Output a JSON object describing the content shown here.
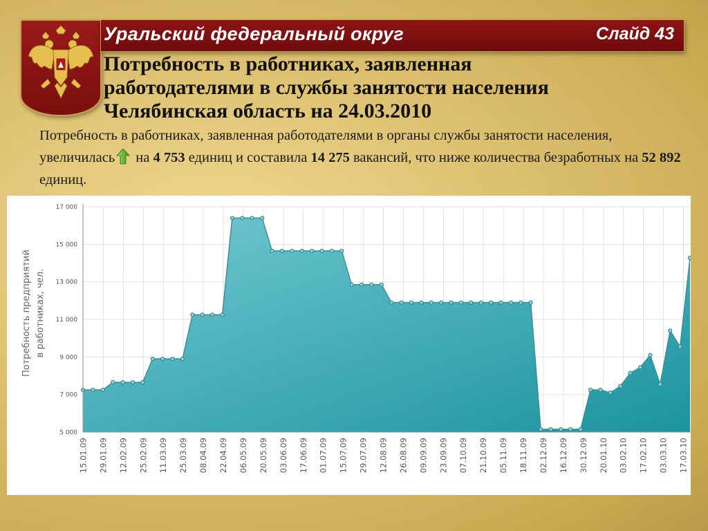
{
  "header": {
    "region": "Уральский федеральный округ",
    "slide_label": "Слайд 43"
  },
  "title": {
    "line1": "Потребность в работниках, заявленная",
    "line2": "работодателями в службы занятости населения",
    "line3": "Челябинская область на 24.03.2010"
  },
  "summary": {
    "part1": "Потребность в работниках, заявленная работодателями в органы службы занятости населения, увеличилась",
    "part2": " на ",
    "increase": "4 753",
    "part3": " единиц и составила ",
    "total": "14 275",
    "part4": " вакансий, что ниже количества безработных на ",
    "gap": "52 892",
    "part5": " единиц."
  },
  "colors": {
    "header_bg": "#7f1010",
    "emblem_bg": "#8a1414",
    "gold": "#c8a24a",
    "series_line": "#3a8f96",
    "series_fill_top": "#6cc6cf",
    "series_fill_bottom": "#0f8e9a",
    "arrow": "#6db33f"
  },
  "chart_data": {
    "type": "area",
    "ylabel_line1": "Потребность предприятий",
    "ylabel_line2": "в работниках, чел.",
    "ylim": [
      5000,
      17000
    ],
    "yticks": [
      5000,
      7000,
      9000,
      11000,
      13000,
      15000,
      17000
    ],
    "ytick_labels": [
      "5 000",
      "7 000",
      "9 000",
      "11 000",
      "13 000",
      "15 000",
      "17 000"
    ],
    "grid": true,
    "x_labels": [
      "15.01.09",
      "29.01.09",
      "12.02.09",
      "25.02.09",
      "11.03.09",
      "25.03.09",
      "08.04.09",
      "22.04.09",
      "06.05.09",
      "20.05.09",
      "03.06.09",
      "17.06.09",
      "01.07.09",
      "15.07.09",
      "29.07.09",
      "12.08.09",
      "26.08.09",
      "09.09.09",
      "23.09.09",
      "07.10.09",
      "21.10.09",
      "05.11.09",
      "18.11.09",
      "02.12.09",
      "16.12.09",
      "30.12.09",
      "20.01.10",
      "03.02.10",
      "17.02.10",
      "03.03.10",
      "17.03.10"
    ],
    "values": [
      7250,
      7250,
      7250,
      7650,
      7650,
      7650,
      7650,
      8900,
      8900,
      8900,
      8900,
      11250,
      11250,
      11250,
      11250,
      16400,
      16400,
      16400,
      16400,
      14650,
      14650,
      14650,
      14650,
      14650,
      14650,
      14650,
      14650,
      12850,
      12850,
      12850,
      12850,
      11900,
      11900,
      11900,
      11900,
      11900,
      11900,
      11900,
      11900,
      11900,
      11900,
      11900,
      11900,
      11900,
      11900,
      11900,
      5150,
      5150,
      5150,
      5150,
      5150,
      7250,
      7250,
      7100,
      7450,
      8150,
      8450,
      9100,
      7550,
      10400,
      9550,
      14275
    ]
  }
}
